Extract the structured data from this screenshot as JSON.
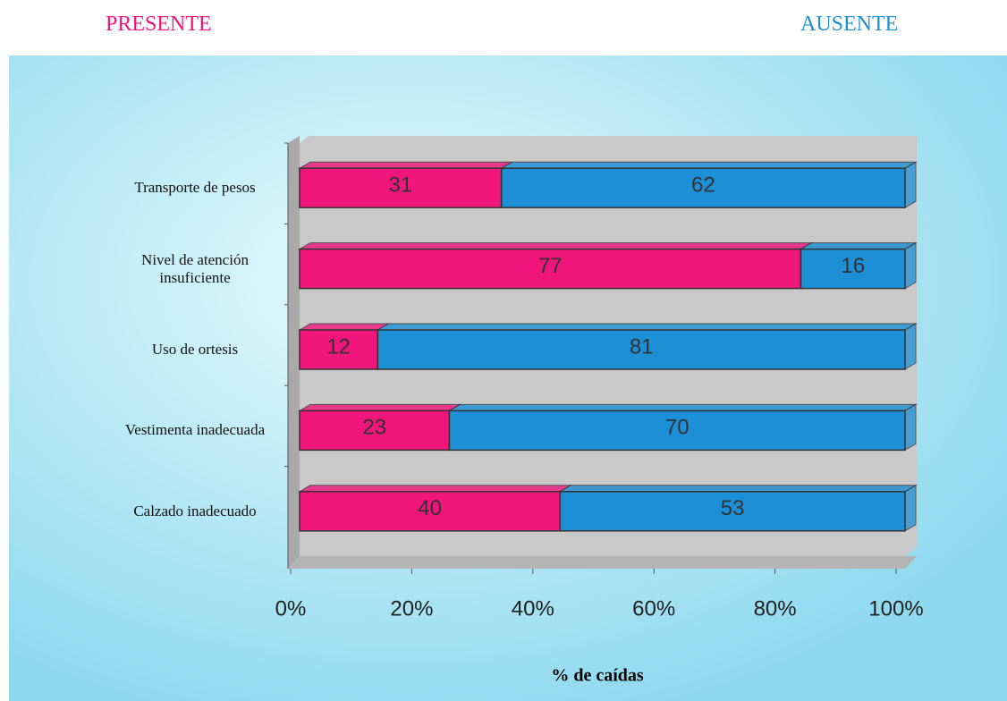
{
  "chart_data": {
    "type": "bar",
    "orientation": "horizontal",
    "stacking": "percent",
    "categories": [
      "Transporte de pesos",
      "Nivel de atención insuficiente",
      "Uso de ortesis",
      "Vestimenta inadecuada",
      "Calzado inadecuado"
    ],
    "series": [
      {
        "name": "PRESENTE",
        "color": "#f0167c",
        "values": [
          31,
          77,
          12,
          23,
          40
        ]
      },
      {
        "name": "AUSENTE",
        "color": "#1c8fd6",
        "values": [
          62,
          16,
          81,
          70,
          53
        ]
      }
    ],
    "xlabel": "% de caídas",
    "xlim": [
      0,
      100
    ],
    "xticks": [
      {
        "value": 0,
        "label": "0%"
      },
      {
        "value": 20,
        "label": "20%"
      },
      {
        "value": 40,
        "label": "40%"
      },
      {
        "value": 60,
        "label": "60%"
      },
      {
        "value": 80,
        "label": "80%"
      },
      {
        "value": 100,
        "label": "100%"
      }
    ]
  }
}
